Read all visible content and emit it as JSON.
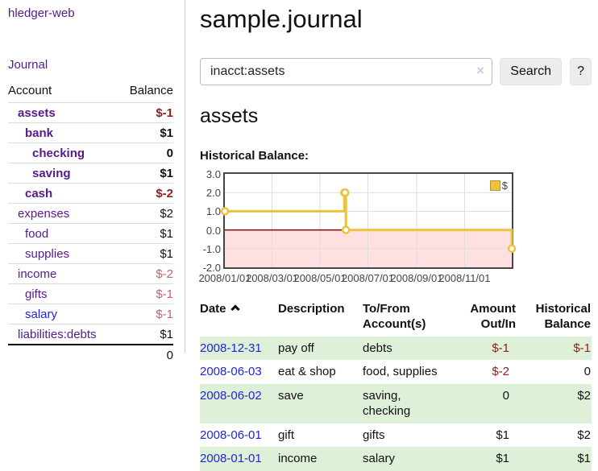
{
  "colors": {
    "link_purple": "#551a8b",
    "link_blue": "#2323dd",
    "negative_dark": "#8f1f1f",
    "negative_light": "#c2636b",
    "row_stripe_green": "#dff0d8",
    "chart_line": "#edc240",
    "chart_zero_line": "#7d0808",
    "chart_negative_fill": "rgba(255,0,0,0.12)"
  },
  "app_title": "hledger-web",
  "sidebar": {
    "journal_link": "Journal",
    "accounts_table": {
      "headers": {
        "account": "Account",
        "balance": "Balance"
      },
      "rows": [
        {
          "account": "assets",
          "balance": "$-1",
          "depth": 0,
          "bold": true,
          "balance_style": "neg"
        },
        {
          "account": "bank",
          "balance": "$1",
          "depth": 1,
          "bold": true,
          "balance_style": "pos"
        },
        {
          "account": "checking",
          "balance": "0",
          "depth": 2,
          "bold": true,
          "balance_style": "pos"
        },
        {
          "account": "saving",
          "balance": "$1",
          "depth": 2,
          "bold": true,
          "balance_style": "pos"
        },
        {
          "account": "cash",
          "balance": "$-2",
          "depth": 1,
          "bold": true,
          "balance_style": "neg"
        },
        {
          "account": "expenses",
          "balance": "$2",
          "depth": 0,
          "bold": false,
          "balance_style": "pos"
        },
        {
          "account": "food",
          "balance": "$1",
          "depth": 1,
          "bold": false,
          "balance_style": "pos"
        },
        {
          "account": "supplies",
          "balance": "$1",
          "depth": 1,
          "bold": false,
          "balance_style": "pos"
        },
        {
          "account": "income",
          "balance": "$-2",
          "depth": 0,
          "bold": false,
          "balance_style": "neg-light"
        },
        {
          "account": "gifts",
          "balance": "$-1",
          "depth": 1,
          "bold": false,
          "balance_style": "neg-light"
        },
        {
          "account": "salary",
          "balance": "$-1",
          "depth": 1,
          "bold": false,
          "balance_style": "neg-light",
          "link_style": "blue"
        },
        {
          "account": "liabilities:debts",
          "balance": "$1",
          "depth": 0,
          "bold": false,
          "balance_style": "pos"
        }
      ],
      "total": "0"
    }
  },
  "main": {
    "title": "sample.journal",
    "search": {
      "value": "inacct:assets",
      "clear_icon": "×",
      "button_label": "Search",
      "help_label": "?"
    },
    "account_heading": "assets",
    "chart_title": "Historical Balance:",
    "register": {
      "headers": {
        "date": "Date",
        "description": "Description",
        "accounts": "To/From Account(s)",
        "amount": "Amount Out/In",
        "balance": "Historical Balance"
      },
      "rows": [
        {
          "date": "2008-12-31",
          "description": "pay off",
          "accounts": "debts",
          "amount": "$-1",
          "amount_style": "neg",
          "balance": "$-1",
          "balance_style": "neg"
        },
        {
          "date": "2008-06-03",
          "description": "eat & shop",
          "accounts": "food, supplies",
          "amount": "$-2",
          "amount_style": "neg",
          "balance": "0",
          "balance_style": "pos"
        },
        {
          "date": "2008-06-02",
          "description": "save",
          "accounts": "saving, checking",
          "amount": "0",
          "amount_style": "pos",
          "balance": "$2",
          "balance_style": "pos"
        },
        {
          "date": "2008-06-01",
          "description": "gift",
          "accounts": "gifts",
          "amount": "$1",
          "amount_style": "pos",
          "balance": "$2",
          "balance_style": "pos"
        },
        {
          "date": "2008-01-01",
          "description": "income",
          "accounts": "salary",
          "amount": "$1",
          "amount_style": "pos",
          "balance": "$1",
          "balance_style": "pos"
        }
      ]
    }
  },
  "chart_data": {
    "type": "line",
    "step": true,
    "title": "Historical Balance:",
    "series": [
      {
        "name": "$",
        "color": "#edc240"
      }
    ],
    "points": [
      {
        "date": "2008-01-01",
        "value": 1
      },
      {
        "date": "2008-06-01",
        "value": 2
      },
      {
        "date": "2008-06-02",
        "value": 2
      },
      {
        "date": "2008-06-03",
        "value": 0
      },
      {
        "date": "2008-12-31",
        "value": -1
      }
    ],
    "x_range": [
      "2008-01-01",
      "2008-12-31"
    ],
    "ylim": [
      -2.0,
      3.0
    ],
    "y_ticks": [
      "3.0",
      "2.0",
      "1.0",
      "0.0",
      "-1.0",
      "-2.0"
    ],
    "x_ticks": [
      "2008/01/01",
      "2008/03/01",
      "2008/05/01",
      "2008/07/01",
      "2008/09/01",
      "2008/11/01"
    ],
    "grid": true,
    "legend_position": "top-right",
    "zero_line": true,
    "negative_region_shaded": true
  }
}
